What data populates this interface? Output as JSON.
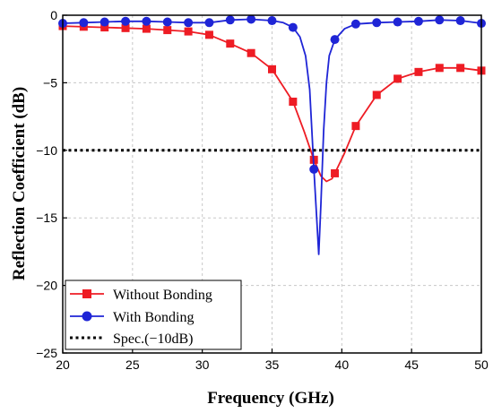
{
  "chart_data": {
    "type": "line",
    "xlabel": "Frequency (GHz)",
    "ylabel": "Reflection Coefficient (dB)",
    "xlim": [
      20,
      50
    ],
    "ylim": [
      -25,
      0
    ],
    "xticks": [
      20,
      25,
      30,
      35,
      40,
      45,
      50
    ],
    "yticks": [
      0,
      -5,
      -10,
      -15,
      -20,
      -25
    ],
    "grid": true,
    "legend_position": "bottom-left",
    "series": [
      {
        "name": "Without Bonding",
        "color": "#ee1c24",
        "marker": "square",
        "marker_x": [
          20,
          21.5,
          23,
          24.5,
          26,
          27.5,
          29,
          30.5,
          32,
          33.5,
          35,
          36.5,
          38,
          39.5,
          41,
          42.5,
          44,
          45.5,
          47,
          48.5,
          50
        ],
        "marker_y": [
          -0.8,
          -0.85,
          -0.9,
          -0.95,
          -1.0,
          -1.1,
          -1.2,
          -1.45,
          -2.1,
          -2.8,
          -4.0,
          -6.4,
          -10.7,
          -11.7,
          -8.2,
          -5.9,
          -4.7,
          -4.2,
          -3.9,
          -3.9,
          -4.1
        ],
        "curve_x": [
          20,
          23,
          26,
          29,
          30.5,
          32,
          33.5,
          35,
          36.5,
          37.3,
          38,
          38.5,
          38.9,
          39.3,
          39.5,
          40.2,
          41,
          42.5,
          44,
          45.5,
          47,
          48.5,
          50
        ],
        "curve_y": [
          -0.8,
          -0.9,
          -1.0,
          -1.2,
          -1.45,
          -2.1,
          -2.8,
          -4.0,
          -6.4,
          -8.6,
          -10.7,
          -11.9,
          -12.3,
          -12.1,
          -11.7,
          -10.2,
          -8.2,
          -5.9,
          -4.7,
          -4.2,
          -3.9,
          -3.9,
          -4.1
        ]
      },
      {
        "name": "With Bonding",
        "color": "#1f25d6",
        "marker": "circle",
        "marker_x": [
          20,
          21.5,
          23,
          24.5,
          26,
          27.5,
          29,
          30.5,
          32,
          33.5,
          35,
          36.5,
          38,
          39.5,
          41,
          42.5,
          44,
          45.5,
          47,
          48.5,
          50
        ],
        "marker_y": [
          -0.6,
          -0.55,
          -0.5,
          -0.45,
          -0.45,
          -0.5,
          -0.55,
          -0.55,
          -0.35,
          -0.3,
          -0.4,
          -0.9,
          -11.4,
          -1.8,
          -0.65,
          -0.55,
          -0.5,
          -0.45,
          -0.35,
          -0.4,
          -0.6
        ],
        "curve_x": [
          20,
          21.5,
          23,
          24.5,
          26,
          27.5,
          29,
          30.5,
          32,
          33.5,
          35,
          35.8,
          36.5,
          37.0,
          37.4,
          37.7,
          38.0,
          38.2,
          38.35,
          38.5,
          38.7,
          38.9,
          39.1,
          39.5,
          40.2,
          41,
          42.5,
          44,
          45.5,
          47,
          48.5,
          50
        ],
        "curve_y": [
          -0.6,
          -0.55,
          -0.5,
          -0.45,
          -0.45,
          -0.5,
          -0.55,
          -0.55,
          -0.35,
          -0.3,
          -0.4,
          -0.55,
          -0.9,
          -1.6,
          -3.0,
          -5.5,
          -11.4,
          -15.0,
          -17.7,
          -14.0,
          -8.5,
          -5.0,
          -3.0,
          -1.8,
          -1.0,
          -0.65,
          -0.55,
          -0.5,
          -0.45,
          -0.35,
          -0.4,
          -0.6
        ]
      },
      {
        "name": "Spec.(−10dB)",
        "color": "#000000",
        "style": "dotted",
        "x": [
          20,
          50
        ],
        "y": [
          -10,
          -10
        ]
      }
    ]
  }
}
